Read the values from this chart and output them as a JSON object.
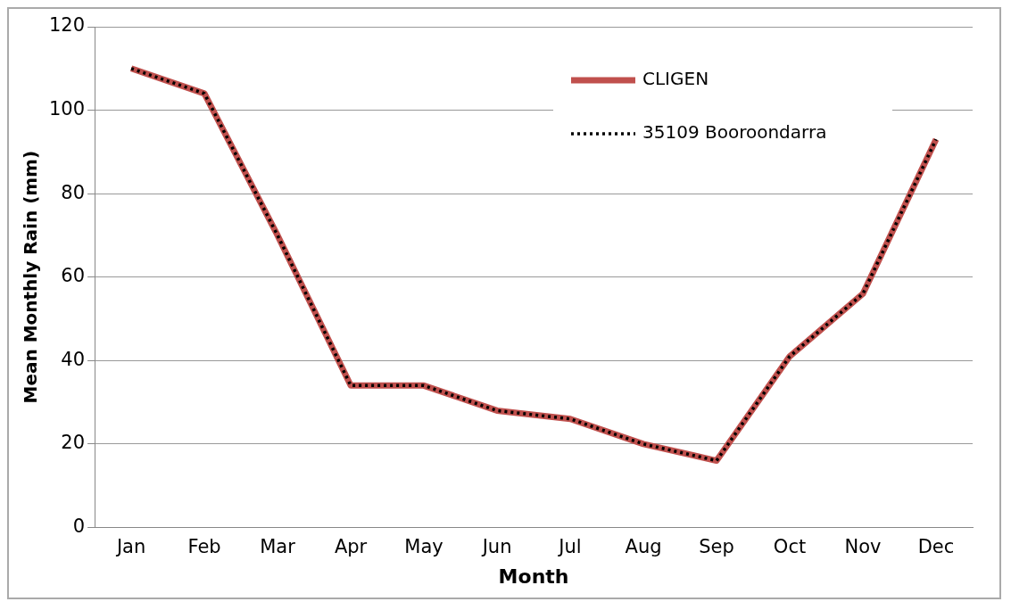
{
  "chart_data": {
    "type": "line",
    "xlabel": "Month",
    "ylabel": "Mean Monthly Rain (mm)",
    "categories": [
      "Jan",
      "Feb",
      "Mar",
      "Apr",
      "May",
      "Jun",
      "Jul",
      "Aug",
      "Sep",
      "Oct",
      "Nov",
      "Dec"
    ],
    "series": [
      {
        "name": "CLIGEN",
        "color": "#c0504d",
        "line_style": "solid",
        "values": [
          110,
          104,
          70,
          34,
          34,
          28,
          26,
          20,
          16,
          41,
          56,
          93
        ]
      },
      {
        "name": "35109 Booroondarra",
        "color": "#000000",
        "line_style": "dotted",
        "values": [
          110,
          104,
          70,
          34,
          34,
          28,
          26,
          20,
          16,
          41,
          56,
          93
        ]
      }
    ],
    "ylim": [
      0,
      120
    ],
    "yticks": [
      0,
      20,
      40,
      60,
      80,
      100,
      120
    ],
    "grid": "y",
    "legend": "top right",
    "marker": "none"
  }
}
